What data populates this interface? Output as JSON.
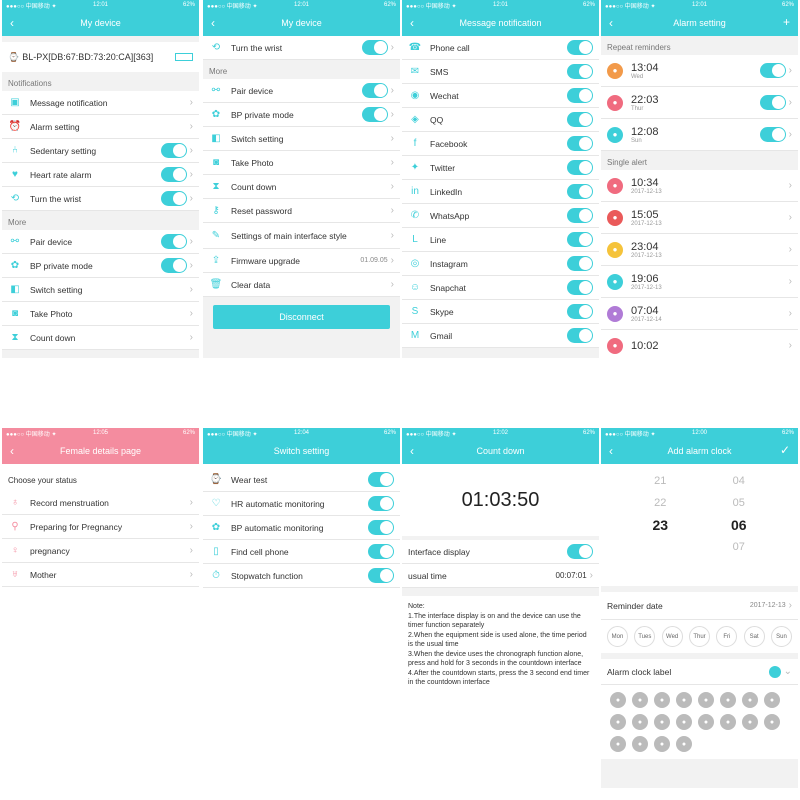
{
  "status": {
    "carrier": "●●●○○ 中国移动 ✦",
    "battery": "62%"
  },
  "p1": {
    "time": "12:01",
    "title": "My device",
    "device": "BL-PX[DB:67:BD:73:20:CA][363]",
    "sec_notifications": "Notifications",
    "rows": [
      "Message notification",
      "Alarm setting",
      "Sedentary setting",
      "Heart rate alarm",
      "Turn the wrist"
    ],
    "sec_more": "More",
    "more": [
      "Pair device",
      "BP private mode",
      "Switch setting",
      "Take Photo",
      "Count down"
    ]
  },
  "p2": {
    "time": "12:01",
    "title": "My device",
    "top": "Turn the wrist",
    "sec_more": "More",
    "rows": [
      "Pair device",
      "BP private mode",
      "Switch setting",
      "Take Photo",
      "Count down",
      "Reset password",
      "Settings of main interface style",
      "Firmware upgrade",
      "Clear data"
    ],
    "firmware_version": "01.09.05",
    "disconnect": "Disconnect"
  },
  "p3": {
    "time": "12:01",
    "title": "Message notification",
    "rows": [
      "Phone call",
      "SMS",
      "Wechat",
      "QQ",
      "Facebook",
      "Twitter",
      "LinkedIn",
      "WhatsApp",
      "Line",
      "Instagram",
      "Snapchat",
      "Skype",
      "Gmail"
    ]
  },
  "p4": {
    "time": "12:01",
    "title": "Alarm setting",
    "add": "+",
    "sec_repeat": "Repeat reminders",
    "repeat": [
      {
        "time": "13:04",
        "sub": "Wed"
      },
      {
        "time": "22:03",
        "sub": "Thur"
      },
      {
        "time": "12:08",
        "sub": "Sun"
      }
    ],
    "sec_single": "Single alert",
    "single": [
      {
        "time": "10:34",
        "sub": "2017-12-13"
      },
      {
        "time": "15:05",
        "sub": "2017-12-13"
      },
      {
        "time": "23:04",
        "sub": "2017-12-13"
      },
      {
        "time": "19:06",
        "sub": "2017-12-13"
      },
      {
        "time": "07:04",
        "sub": "2017-12-14"
      },
      {
        "time": "10:02",
        "sub": ""
      }
    ]
  },
  "p5": {
    "time": "12:05",
    "title": "Female details page",
    "sec": "Choose your status",
    "rows": [
      "Record menstruation",
      "Preparing for Pregnancy",
      "pregnancy",
      "Mother"
    ]
  },
  "p6": {
    "time": "12:04",
    "title": "Switch setting",
    "rows": [
      "Wear test",
      "HR automatic monitoring",
      "BP automatic monitoring",
      "Find cell phone",
      "Stopwatch function"
    ]
  },
  "p7": {
    "time": "12:02",
    "title": "Count down",
    "timer": "01:03:50",
    "interface": "Interface display",
    "usual": "usual time",
    "usual_val": "00:07:01",
    "note": [
      "Note:",
      "1.The interface display is on and the device can use the timer function separately",
      "2.When the equipment side is used alone, the time period is the usual time",
      "3.When the device uses the chronograph function alone, press and hold for 3 seconds in the countdown interface",
      "4.After the countdown starts, press the 3 second end timer in the countdown interface"
    ]
  },
  "p8": {
    "time": "12:00",
    "title": "Add alarm clock",
    "confirm": "✓",
    "hours": [
      "21",
      "22",
      "23",
      "",
      ""
    ],
    "mins": [
      "04",
      "05",
      "06",
      "07",
      ""
    ],
    "reminder_date": "Reminder date",
    "date_val": "2017-12-13",
    "days": [
      "Mon",
      "Tues",
      "Wed",
      "Thur",
      "Fri",
      "Sat",
      "Sun"
    ],
    "label": "Alarm clock label"
  },
  "colors": {
    "teal": "#3dcfd9",
    "pink": "#f48c9f"
  }
}
